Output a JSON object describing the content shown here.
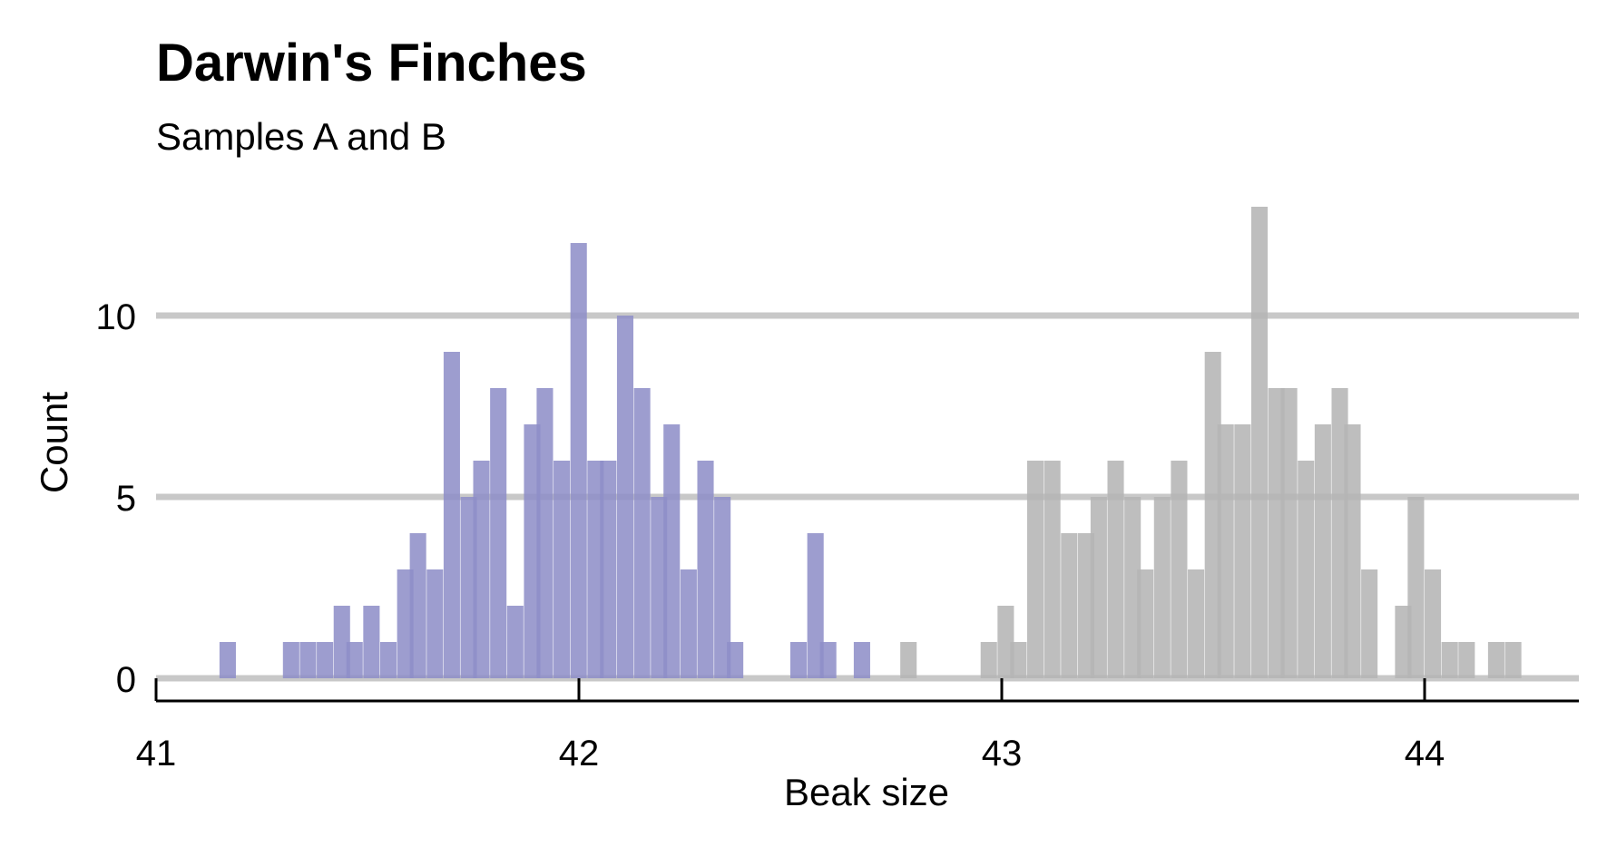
{
  "chart_data": {
    "type": "bar",
    "title": "Darwin's Finches",
    "subtitle": "Samples A and B",
    "xlabel": "Beak size",
    "ylabel": "Count",
    "xlim": [
      41,
      44.37
    ],
    "ylim": [
      0,
      13.5
    ],
    "x_ticks": [
      41,
      42,
      43,
      44
    ],
    "y_ticks": [
      0,
      5,
      10
    ],
    "grid": "horizontal",
    "bin_width": 0.0375,
    "series": [
      {
        "color": "#8e8ec8",
        "bins": [
          {
            "x": 41.15,
            "count": 1
          },
          {
            "x": 41.3,
            "count": 1
          },
          {
            "x": 41.34,
            "count": 1
          },
          {
            "x": 41.38,
            "count": 1
          },
          {
            "x": 41.42,
            "count": 2
          },
          {
            "x": 41.45,
            "count": 1
          },
          {
            "x": 41.49,
            "count": 2
          },
          {
            "x": 41.53,
            "count": 1
          },
          {
            "x": 41.57,
            "count": 3
          },
          {
            "x": 41.6,
            "count": 4
          },
          {
            "x": 41.64,
            "count": 3
          },
          {
            "x": 41.68,
            "count": 9
          },
          {
            "x": 41.72,
            "count": 5
          },
          {
            "x": 41.75,
            "count": 6
          },
          {
            "x": 41.79,
            "count": 8
          },
          {
            "x": 41.83,
            "count": 2
          },
          {
            "x": 41.87,
            "count": 7
          },
          {
            "x": 41.9,
            "count": 8
          },
          {
            "x": 41.94,
            "count": 6
          },
          {
            "x": 41.98,
            "count": 12
          },
          {
            "x": 42.02,
            "count": 6
          },
          {
            "x": 42.05,
            "count": 6
          },
          {
            "x": 42.09,
            "count": 10
          },
          {
            "x": 42.13,
            "count": 8
          },
          {
            "x": 42.17,
            "count": 5
          },
          {
            "x": 42.2,
            "count": 7
          },
          {
            "x": 42.24,
            "count": 3
          },
          {
            "x": 42.28,
            "count": 6
          },
          {
            "x": 42.32,
            "count": 5
          },
          {
            "x": 42.35,
            "count": 1
          },
          {
            "x": 42.5,
            "count": 1
          },
          {
            "x": 42.54,
            "count": 4
          },
          {
            "x": 42.57,
            "count": 1
          },
          {
            "x": 42.65,
            "count": 1
          }
        ]
      },
      {
        "color": "#b4b4b4",
        "bins": [
          {
            "x": 42.76,
            "count": 1
          },
          {
            "x": 42.95,
            "count": 1
          },
          {
            "x": 42.99,
            "count": 2
          },
          {
            "x": 43.02,
            "count": 1
          },
          {
            "x": 43.06,
            "count": 6
          },
          {
            "x": 43.1,
            "count": 6
          },
          {
            "x": 43.14,
            "count": 4
          },
          {
            "x": 43.18,
            "count": 4
          },
          {
            "x": 43.21,
            "count": 5
          },
          {
            "x": 43.25,
            "count": 6
          },
          {
            "x": 43.29,
            "count": 5
          },
          {
            "x": 43.32,
            "count": 3
          },
          {
            "x": 43.36,
            "count": 5
          },
          {
            "x": 43.4,
            "count": 6
          },
          {
            "x": 43.44,
            "count": 3
          },
          {
            "x": 43.48,
            "count": 9
          },
          {
            "x": 43.51,
            "count": 7
          },
          {
            "x": 43.55,
            "count": 7
          },
          {
            "x": 43.59,
            "count": 13
          },
          {
            "x": 43.63,
            "count": 8
          },
          {
            "x": 43.66,
            "count": 8
          },
          {
            "x": 43.7,
            "count": 6
          },
          {
            "x": 43.74,
            "count": 7
          },
          {
            "x": 43.78,
            "count": 8
          },
          {
            "x": 43.81,
            "count": 7
          },
          {
            "x": 43.85,
            "count": 3
          },
          {
            "x": 43.93,
            "count": 2
          },
          {
            "x": 43.96,
            "count": 5
          },
          {
            "x": 44.0,
            "count": 3
          },
          {
            "x": 44.04,
            "count": 1
          },
          {
            "x": 44.08,
            "count": 1
          },
          {
            "x": 44.15,
            "count": 1
          },
          {
            "x": 44.19,
            "count": 1
          }
        ]
      }
    ]
  }
}
